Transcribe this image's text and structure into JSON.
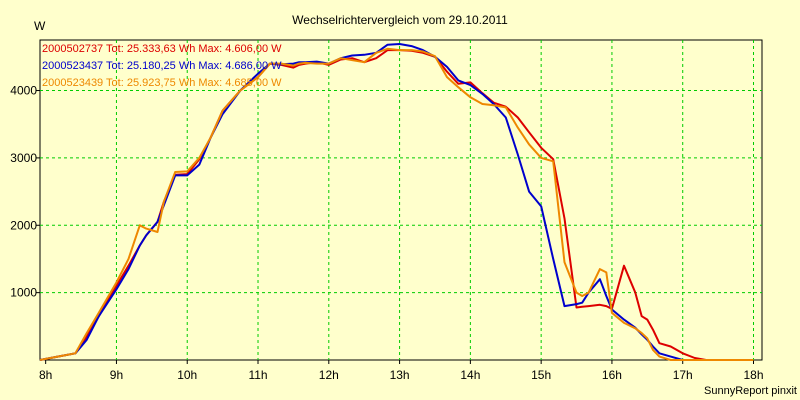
{
  "chart_data": {
    "type": "line",
    "title": "Wechselrichtervergleich vom 29.10.2011",
    "ylabel": "W",
    "xlabel": "",
    "footer": "SunnyReport pinxit",
    "x_ticks": [
      "8h",
      "9h",
      "10h",
      "11h",
      "12h",
      "13h",
      "14h",
      "15h",
      "16h",
      "17h",
      "18h"
    ],
    "y_ticks": [
      "1000",
      "2000",
      "3000",
      "4000"
    ],
    "xlim": [
      8,
      18
    ],
    "ylim": [
      0,
      4750
    ],
    "grid": true,
    "legend_position": "top-left",
    "x": [
      7.92,
      8.17,
      8.42,
      8.58,
      8.75,
      9.0,
      9.17,
      9.33,
      9.42,
      9.58,
      9.67,
      9.83,
      10.0,
      10.17,
      10.33,
      10.5,
      10.75,
      11.0,
      11.17,
      11.33,
      11.5,
      11.58,
      11.67,
      11.83,
      12.0,
      12.17,
      12.33,
      12.5,
      12.67,
      12.83,
      13.0,
      13.17,
      13.33,
      13.5,
      13.67,
      13.83,
      14.0,
      14.17,
      14.33,
      14.5,
      14.67,
      14.83,
      15.0,
      15.17,
      15.33,
      15.5,
      15.58,
      15.67,
      15.83,
      15.92,
      16.0,
      16.17,
      16.33,
      16.42,
      16.5,
      16.58,
      16.67,
      16.83,
      17.0,
      17.17,
      17.33,
      17.5,
      17.67,
      17.83,
      18.0
    ],
    "series": [
      {
        "name": "2000502737",
        "legend": "2000502737 Tot: 25.333,63 Wh Max: 4.606,00 W",
        "color": "#DD0000",
        "values": [
          0,
          50,
          100,
          350,
          650,
          1100,
          1400,
          1700,
          1850,
          2050,
          2350,
          2750,
          2760,
          2980,
          3300,
          3700,
          4000,
          4200,
          4400,
          4380,
          4340,
          4380,
          4400,
          4420,
          4380,
          4460,
          4480,
          4420,
          4480,
          4600,
          4600,
          4590,
          4560,
          4500,
          4280,
          4100,
          4120,
          3960,
          3820,
          3760,
          3600,
          3380,
          3150,
          2980,
          2100,
          780,
          790,
          800,
          820,
          800,
          760,
          1400,
          1000,
          650,
          600,
          450,
          250,
          200,
          100,
          30,
          0,
          0,
          0,
          0,
          0
        ]
      },
      {
        "name": "2000523437",
        "legend": "2000523437 Tot: 25.180,25 Wh Max: 4.686,00 W",
        "color": "#0000CC",
        "values": [
          0,
          50,
          100,
          300,
          650,
          1050,
          1350,
          1700,
          1850,
          2050,
          2300,
          2740,
          2740,
          2900,
          3300,
          3650,
          4000,
          4250,
          4400,
          4390,
          4400,
          4420,
          4420,
          4430,
          4400,
          4480,
          4520,
          4530,
          4560,
          4680,
          4690,
          4660,
          4600,
          4500,
          4350,
          4150,
          4080,
          3950,
          3800,
          3600,
          3050,
          2500,
          2280,
          1500,
          800,
          830,
          850,
          1000,
          1200,
          950,
          750,
          600,
          480,
          380,
          300,
          200,
          100,
          50,
          0,
          0,
          0,
          0,
          0,
          0,
          0
        ],
        "x_offset": 0
      },
      {
        "name": "2000523439",
        "legend": "2000523439 Tot: 25.923,75 Wh Max: 4.685,00 W",
        "color": "#EE8800",
        "values": [
          0,
          50,
          100,
          400,
          700,
          1150,
          1500,
          2000,
          1950,
          1900,
          2350,
          2790,
          2800,
          3000,
          3300,
          3700,
          4000,
          4200,
          4400,
          4400,
          4370,
          4400,
          4410,
          4400,
          4400,
          4480,
          4450,
          4420,
          4560,
          4620,
          4600,
          4600,
          4580,
          4510,
          4200,
          4050,
          3900,
          3800,
          3780,
          3750,
          3450,
          3200,
          3000,
          2950,
          1450,
          1000,
          950,
          1000,
          1350,
          1300,
          700,
          550,
          470,
          400,
          320,
          150,
          50,
          0,
          0,
          0,
          0,
          0,
          0,
          0,
          0
        ]
      }
    ]
  }
}
